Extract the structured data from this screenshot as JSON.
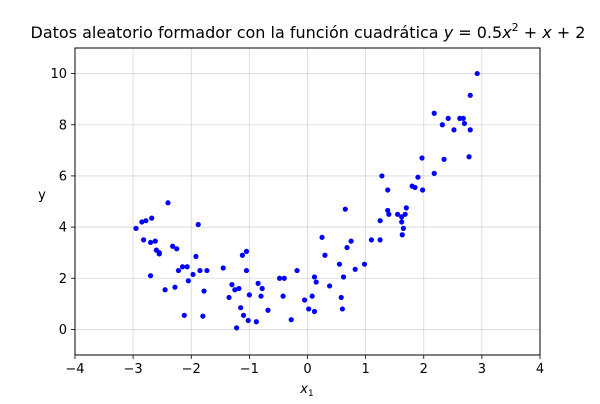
{
  "chart_data": {
    "type": "scatter",
    "title_text": "Datos aleatorio formador con la función cuadrática ",
    "title_math": {
      "y": "y",
      "eq": " = 0.5",
      "x1": "x",
      "exp": "2",
      "rest1": " + ",
      "x2": "x",
      "rest2": " + 2"
    },
    "xlabel": {
      "base": "x",
      "sub": "1"
    },
    "ylabel": "y",
    "xlim": [
      -4,
      4
    ],
    "ylim": [
      -1,
      11
    ],
    "x_ticks": [
      -4,
      -3,
      -2,
      -1,
      0,
      1,
      2,
      3,
      4
    ],
    "x_tick_labels": [
      "−4",
      "−3",
      "−2",
      "−1",
      "0",
      "1",
      "2",
      "3",
      "4"
    ],
    "y_ticks": [
      0,
      2,
      4,
      6,
      8,
      10
    ],
    "y_tick_labels": [
      "0",
      "2",
      "4",
      "6",
      "8",
      "10"
    ],
    "grid": true,
    "marker_color": "#0000ff",
    "points": [
      [
        -2.95,
        3.95
      ],
      [
        -2.85,
        4.2
      ],
      [
        -2.78,
        4.25
      ],
      [
        -2.68,
        4.35
      ],
      [
        -2.82,
        3.5
      ],
      [
        -2.7,
        3.4
      ],
      [
        -2.62,
        3.45
      ],
      [
        -2.6,
        3.1
      ],
      [
        -2.55,
        2.95
      ],
      [
        -2.55,
        3.0
      ],
      [
        -2.7,
        2.1
      ],
      [
        -2.45,
        1.55
      ],
      [
        -2.4,
        4.95
      ],
      [
        -2.32,
        3.25
      ],
      [
        -2.25,
        3.15
      ],
      [
        -2.22,
        2.3
      ],
      [
        -2.28,
        1.65
      ],
      [
        -2.15,
        2.45
      ],
      [
        -2.07,
        2.45
      ],
      [
        -2.05,
        1.9
      ],
      [
        -1.97,
        2.15
      ],
      [
        -1.92,
        2.85
      ],
      [
        -1.88,
        4.1
      ],
      [
        -1.85,
        2.3
      ],
      [
        -1.78,
        1.5
      ],
      [
        -1.73,
        2.3
      ],
      [
        -1.8,
        0.52
      ],
      [
        -2.12,
        0.55
      ],
      [
        -1.45,
        2.4
      ],
      [
        -1.35,
        1.25
      ],
      [
        -1.3,
        1.75
      ],
      [
        -1.25,
        1.55
      ],
      [
        -1.22,
        0.06
      ],
      [
        -1.18,
        1.6
      ],
      [
        -1.12,
        2.9
      ],
      [
        -1.05,
        3.05
      ],
      [
        -1.05,
        2.3
      ],
      [
        -1.0,
        1.35
      ],
      [
        -1.15,
        0.85
      ],
      [
        -1.1,
        0.55
      ],
      [
        -1.02,
        0.35
      ],
      [
        -0.88,
        0.3
      ],
      [
        -0.85,
        1.8
      ],
      [
        -0.8,
        1.3
      ],
      [
        -0.78,
        1.6
      ],
      [
        -0.68,
        0.75
      ],
      [
        -0.48,
        2.0
      ],
      [
        -0.4,
        2.0
      ],
      [
        -0.42,
        1.3
      ],
      [
        -0.28,
        0.38
      ],
      [
        -0.18,
        2.3
      ],
      [
        -0.05,
        1.15
      ],
      [
        0.02,
        0.8
      ],
      [
        0.08,
        1.3
      ],
      [
        0.12,
        2.05
      ],
      [
        0.15,
        1.85
      ],
      [
        0.12,
        0.7
      ],
      [
        0.25,
        3.6
      ],
      [
        0.3,
        2.9
      ],
      [
        0.38,
        1.7
      ],
      [
        0.55,
        2.55
      ],
      [
        0.58,
        1.25
      ],
      [
        0.6,
        0.8
      ],
      [
        0.62,
        2.05
      ],
      [
        0.65,
        4.7
      ],
      [
        0.68,
        3.2
      ],
      [
        0.75,
        3.45
      ],
      [
        0.82,
        2.35
      ],
      [
        0.98,
        2.55
      ],
      [
        1.1,
        3.5
      ],
      [
        1.25,
        4.25
      ],
      [
        1.25,
        3.5
      ],
      [
        1.28,
        6.0
      ],
      [
        1.38,
        4.65
      ],
      [
        1.4,
        4.5
      ],
      [
        1.38,
        5.45
      ],
      [
        1.55,
        4.5
      ],
      [
        1.62,
        4.4
      ],
      [
        1.62,
        4.2
      ],
      [
        1.65,
        3.95
      ],
      [
        1.63,
        3.7
      ],
      [
        1.68,
        4.5
      ],
      [
        1.7,
        4.75
      ],
      [
        1.8,
        5.6
      ],
      [
        1.85,
        5.55
      ],
      [
        1.9,
        5.95
      ],
      [
        1.97,
        6.7
      ],
      [
        1.98,
        5.45
      ],
      [
        2.18,
        8.45
      ],
      [
        2.18,
        6.1
      ],
      [
        2.32,
        8.0
      ],
      [
        2.35,
        6.65
      ],
      [
        2.42,
        8.25
      ],
      [
        2.52,
        7.8
      ],
      [
        2.62,
        8.25
      ],
      [
        2.68,
        8.25
      ],
      [
        2.7,
        8.05
      ],
      [
        2.8,
        7.8
      ],
      [
        2.78,
        6.75
      ],
      [
        2.8,
        9.15
      ],
      [
        2.92,
        10.0
      ]
    ]
  }
}
